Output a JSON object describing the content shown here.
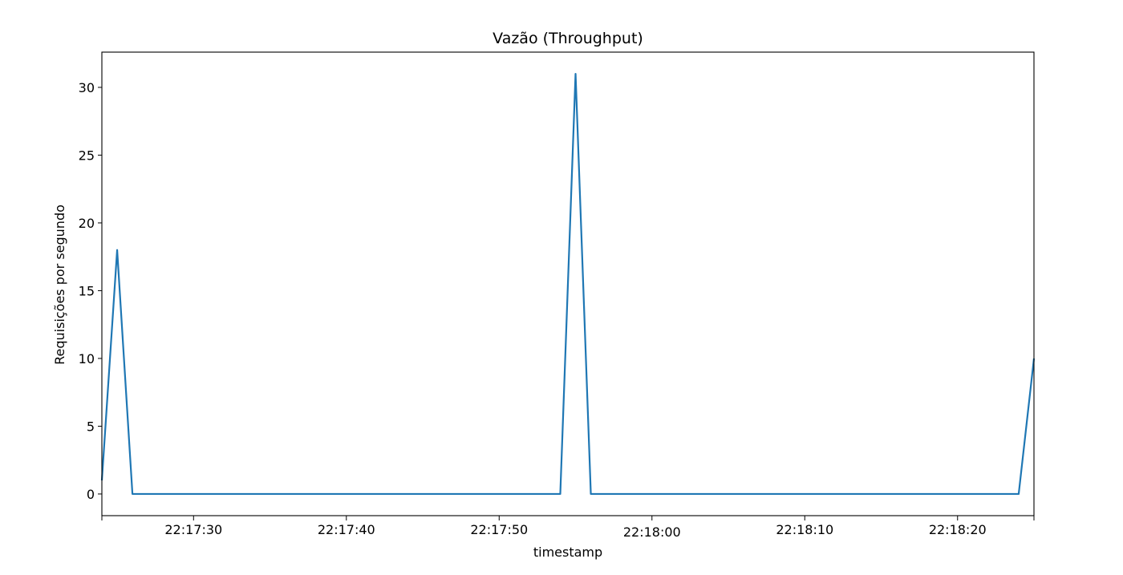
{
  "chart_data": {
    "type": "line",
    "title": "Vazão (Throughput)",
    "xlabel": "timestamp",
    "ylabel": "Requisições por segundo",
    "x_ticks": [
      "22:17:30",
      "22:17:40",
      "22:17:50",
      "22:18:00",
      "22:18:10",
      "22:18:20"
    ],
    "y_ticks": [
      "0",
      "5",
      "10",
      "15",
      "20",
      "25",
      "30"
    ],
    "xlim": [
      "22:17:24",
      "22:18:25"
    ],
    "ylim": [
      -1.6,
      32.6
    ],
    "grid": false,
    "series": [
      {
        "color": "#1f77b4",
        "points": [
          [
            "22:17:24",
            1
          ],
          [
            "22:17:25",
            18
          ],
          [
            "22:17:26",
            0
          ],
          [
            "22:17:54",
            0
          ],
          [
            "22:17:55",
            31
          ],
          [
            "22:17:56",
            0
          ],
          [
            "22:18:24",
            0
          ],
          [
            "22:18:25",
            10
          ]
        ]
      }
    ]
  }
}
